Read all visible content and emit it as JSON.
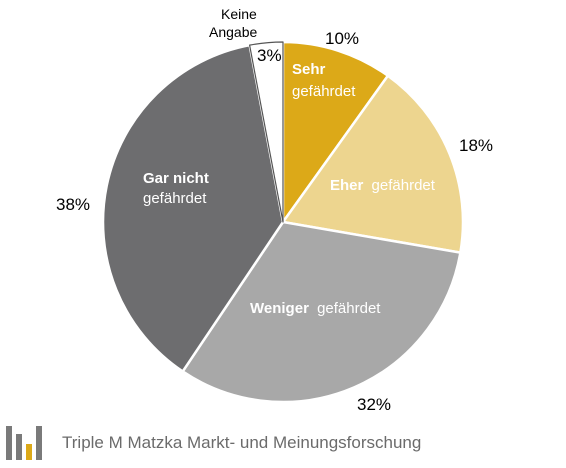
{
  "chart_data": {
    "type": "pie",
    "title": "",
    "slices": [
      {
        "label_bold": "Sehr",
        "label_rest": "gefährdet",
        "value": 10,
        "value_label": "10%",
        "color": "#dca918",
        "label_color": "#ffffff"
      },
      {
        "label_bold": "Eher",
        "label_rest": "gefährdet",
        "value": 18,
        "value_label": "18%",
        "color": "#edd58f",
        "label_color": "#ffffff"
      },
      {
        "label_bold": "Weniger",
        "label_rest": "gefährdet",
        "value": 32,
        "value_label": "32%",
        "color": "#a8a8a8",
        "label_color": "#ffffff"
      },
      {
        "label_bold": "Gar nicht",
        "label_rest": "gefährdet",
        "value": 38,
        "value_label": "38%",
        "color": "#6d6d6f",
        "label_color": "#ffffff"
      },
      {
        "label_bold": "",
        "label_rest": "Keine Angabe",
        "label_lines": [
          "Keine",
          "Angabe"
        ],
        "value": 3,
        "value_label": "3%",
        "color": "#ffffff",
        "label_color": "#000000"
      }
    ]
  },
  "footer": {
    "text": "Triple M Matzka Markt- und Meinungsforschung",
    "logo_icon": "triple-m-logo-icon",
    "logo_colors": {
      "gray": "#7a7a7a",
      "gold": "#dca918"
    }
  }
}
